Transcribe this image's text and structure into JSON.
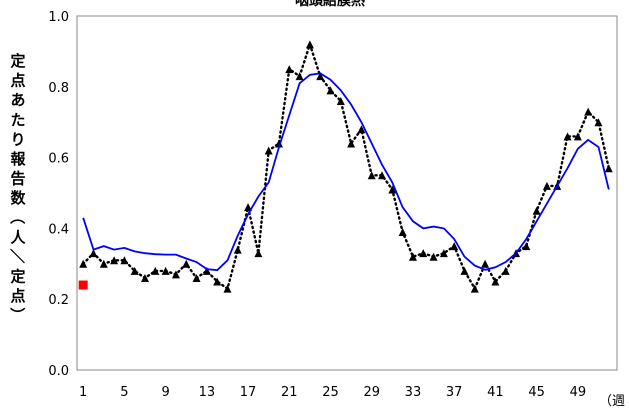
{
  "chart_data": {
    "type": "line",
    "title": "咽頭結膜熱",
    "ylabel": "定点あたり報告数（人／定点）",
    "xlabel": "（週",
    "ylim": [
      0,
      1.0
    ],
    "xlim": [
      1,
      52
    ],
    "y_ticks": [
      "0.0",
      "0.2",
      "0.4",
      "0.6",
      "0.8",
      "1.0"
    ],
    "x_ticks": [
      "1",
      "5",
      "9",
      "13",
      "17",
      "21",
      "25",
      "29",
      "33",
      "37",
      "41",
      "45",
      "49"
    ],
    "series": [
      {
        "name": "",
        "style": "dotted with triangle markers",
        "color": "#000000",
        "x": [
          1,
          2,
          3,
          4,
          5,
          6,
          7,
          8,
          9,
          10,
          11,
          12,
          13,
          14,
          15,
          16,
          17,
          18,
          19,
          20,
          21,
          22,
          23,
          24,
          25,
          26,
          27,
          28,
          29,
          30,
          31,
          32,
          33,
          34,
          35,
          36,
          37,
          38,
          39,
          40,
          41,
          42,
          43,
          44,
          45,
          46,
          47,
          48,
          49,
          50,
          51,
          52
        ],
        "values": [
          0.3,
          0.33,
          0.3,
          0.31,
          0.31,
          0.28,
          0.26,
          0.28,
          0.28,
          0.27,
          0.3,
          0.26,
          0.28,
          0.25,
          0.23,
          0.34,
          0.46,
          0.33,
          0.62,
          0.64,
          0.85,
          0.83,
          0.92,
          0.83,
          0.79,
          0.76,
          0.64,
          0.68,
          0.55,
          0.55,
          0.51,
          0.39,
          0.32,
          0.33,
          0.32,
          0.33,
          0.35,
          0.28,
          0.23,
          0.3,
          0.25,
          0.28,
          0.33,
          0.35,
          0.45,
          0.52,
          0.52,
          0.66,
          0.66,
          0.73,
          0.7,
          0.57
        ]
      },
      {
        "name": "",
        "style": "solid",
        "color": "#0000ff",
        "x": [
          1,
          2,
          3,
          4,
          5,
          6,
          7,
          8,
          9,
          10,
          11,
          12,
          13,
          14,
          15,
          16,
          17,
          18,
          19,
          20,
          21,
          22,
          23,
          24,
          25,
          26,
          27,
          28,
          29,
          30,
          31,
          32,
          33,
          34,
          35,
          36,
          37,
          38,
          39,
          40,
          41,
          42,
          43,
          44,
          45,
          46,
          47,
          48,
          49,
          50,
          51,
          52
        ],
        "values": [
          0.43,
          0.34,
          0.35,
          0.34,
          0.345,
          0.335,
          0.33,
          0.327,
          0.326,
          0.326,
          0.315,
          0.305,
          0.285,
          0.282,
          0.31,
          0.38,
          0.44,
          0.49,
          0.53,
          0.63,
          0.72,
          0.81,
          0.834,
          0.838,
          0.82,
          0.79,
          0.75,
          0.7,
          0.64,
          0.58,
          0.53,
          0.46,
          0.42,
          0.4,
          0.405,
          0.4,
          0.37,
          0.32,
          0.295,
          0.283,
          0.29,
          0.305,
          0.33,
          0.37,
          0.42,
          0.47,
          0.52,
          0.57,
          0.625,
          0.65,
          0.63,
          0.51
        ]
      },
      {
        "name": "",
        "style": "square marker",
        "color": "#ff0000",
        "x": [
          1
        ],
        "values": [
          0.24
        ]
      }
    ]
  }
}
